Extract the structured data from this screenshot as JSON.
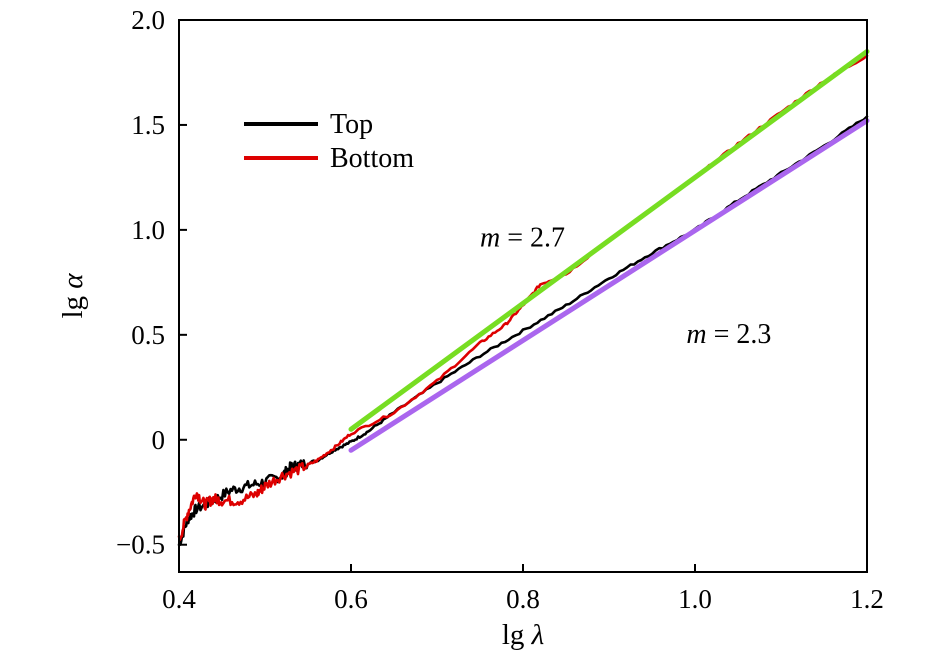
{
  "chart_data": {
    "type": "line",
    "xlabel": {
      "prefix": "lg ",
      "symbol": "λ"
    },
    "ylabel": {
      "prefix": "lg ",
      "symbol": "α"
    },
    "xlim": [
      0.4,
      1.2
    ],
    "ylim": [
      -0.63,
      2.0
    ],
    "x_ticks": [
      0.4,
      0.6,
      0.8,
      1.0,
      1.2
    ],
    "x_tick_labels": [
      "0.4",
      "0.6",
      "0.8",
      "1.0",
      "1.2"
    ],
    "y_ticks": [
      -0.5,
      0,
      0.5,
      1.0,
      1.5,
      2.0
    ],
    "y_tick_labels": [
      "−0.5",
      "0",
      "0.5",
      "1.0",
      "1.5",
      "2.0"
    ],
    "grid": false,
    "legend": {
      "placement": "top-left",
      "entries": [
        {
          "label": "Top",
          "color": "#000000"
        },
        {
          "label": "Bottom",
          "color": "#dd0000"
        }
      ]
    },
    "series": [
      {
        "name": "Top",
        "color": "#000000",
        "x": [
          0.4,
          0.41,
          0.42,
          0.44,
          0.46,
          0.48,
          0.5,
          0.52,
          0.53,
          0.54,
          0.56,
          0.58,
          0.6,
          0.62,
          0.65,
          0.7,
          0.75,
          0.8,
          0.85,
          0.9,
          0.95,
          1.0,
          1.05,
          1.1,
          1.15,
          1.2
        ],
        "y": [
          -0.5,
          -0.38,
          -0.33,
          -0.29,
          -0.24,
          -0.22,
          -0.2,
          -0.17,
          -0.13,
          -0.12,
          -0.1,
          -0.05,
          -0.01,
          0.04,
          0.13,
          0.27,
          0.4,
          0.52,
          0.64,
          0.77,
          0.89,
          1.0,
          1.14,
          1.27,
          1.4,
          1.54
        ]
      },
      {
        "name": "Bottom",
        "color": "#dd0000",
        "x": [
          0.4,
          0.41,
          0.42,
          0.43,
          0.44,
          0.45,
          0.47,
          0.49,
          0.5,
          0.52,
          0.54,
          0.56,
          0.58,
          0.6,
          0.65,
          0.7,
          0.75,
          0.78,
          0.8,
          0.82,
          0.85,
          0.9,
          0.95,
          1.0,
          1.05,
          1.1,
          1.15,
          1.2
        ],
        "y": [
          -0.48,
          -0.35,
          -0.25,
          -0.31,
          -0.28,
          -0.29,
          -0.29,
          -0.26,
          -0.22,
          -0.17,
          -0.14,
          -0.1,
          -0.04,
          0.03,
          0.13,
          0.28,
          0.46,
          0.55,
          0.64,
          0.74,
          0.79,
          0.95,
          1.1,
          1.25,
          1.41,
          1.56,
          1.71,
          1.83
        ]
      },
      {
        "name": "",
        "role": "fit",
        "color": "#77dd22",
        "x": [
          0.6,
          1.2
        ],
        "y": [
          0.05,
          1.85
        ]
      },
      {
        "name": "",
        "role": "fit",
        "color": "#aa66ee",
        "x": [
          0.6,
          1.2
        ],
        "y": [
          -0.05,
          1.52
        ]
      }
    ],
    "annotations": [
      {
        "prefix": "m",
        "text": " = 2.7",
        "x": 0.75,
        "y": 0.92
      },
      {
        "prefix": "m",
        "text": " = 2.3",
        "x": 0.99,
        "y": 0.46
      }
    ]
  }
}
